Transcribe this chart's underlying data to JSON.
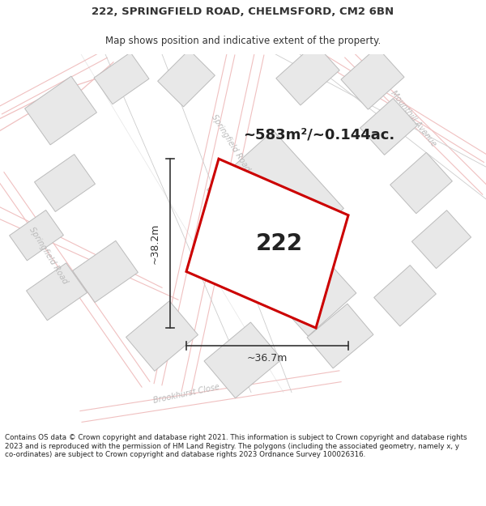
{
  "title_line1": "222, SPRINGFIELD ROAD, CHELMSFORD, CM2 6BN",
  "title_line2": "Map shows position and indicative extent of the property.",
  "area_label": "~583m²/~0.144ac.",
  "property_number": "222",
  "dim_width": "~36.7m",
  "dim_height": "~38.2m",
  "footer_text": "Contains OS data © Crown copyright and database right 2021. This information is subject to Crown copyright and database rights 2023 and is reproduced with the permission of HM Land Registry. The polygons (including the associated geometry, namely x, y co-ordinates) are subject to Crown copyright and database rights 2023 Ordnance Survey 100026316.",
  "map_bg": "#ffffff",
  "parcel_fill": "#e8e8e8",
  "parcel_edge": "#bbbbbb",
  "road_pink": "#f0c0c0",
  "road_gray": "#cccccc",
  "road_label_color": "#bbbbbb",
  "property_fill": "#ffffff",
  "property_edge": "#cc0000",
  "ann_color": "#333333",
  "text_dark": "#222222",
  "text_title": "#333333"
}
